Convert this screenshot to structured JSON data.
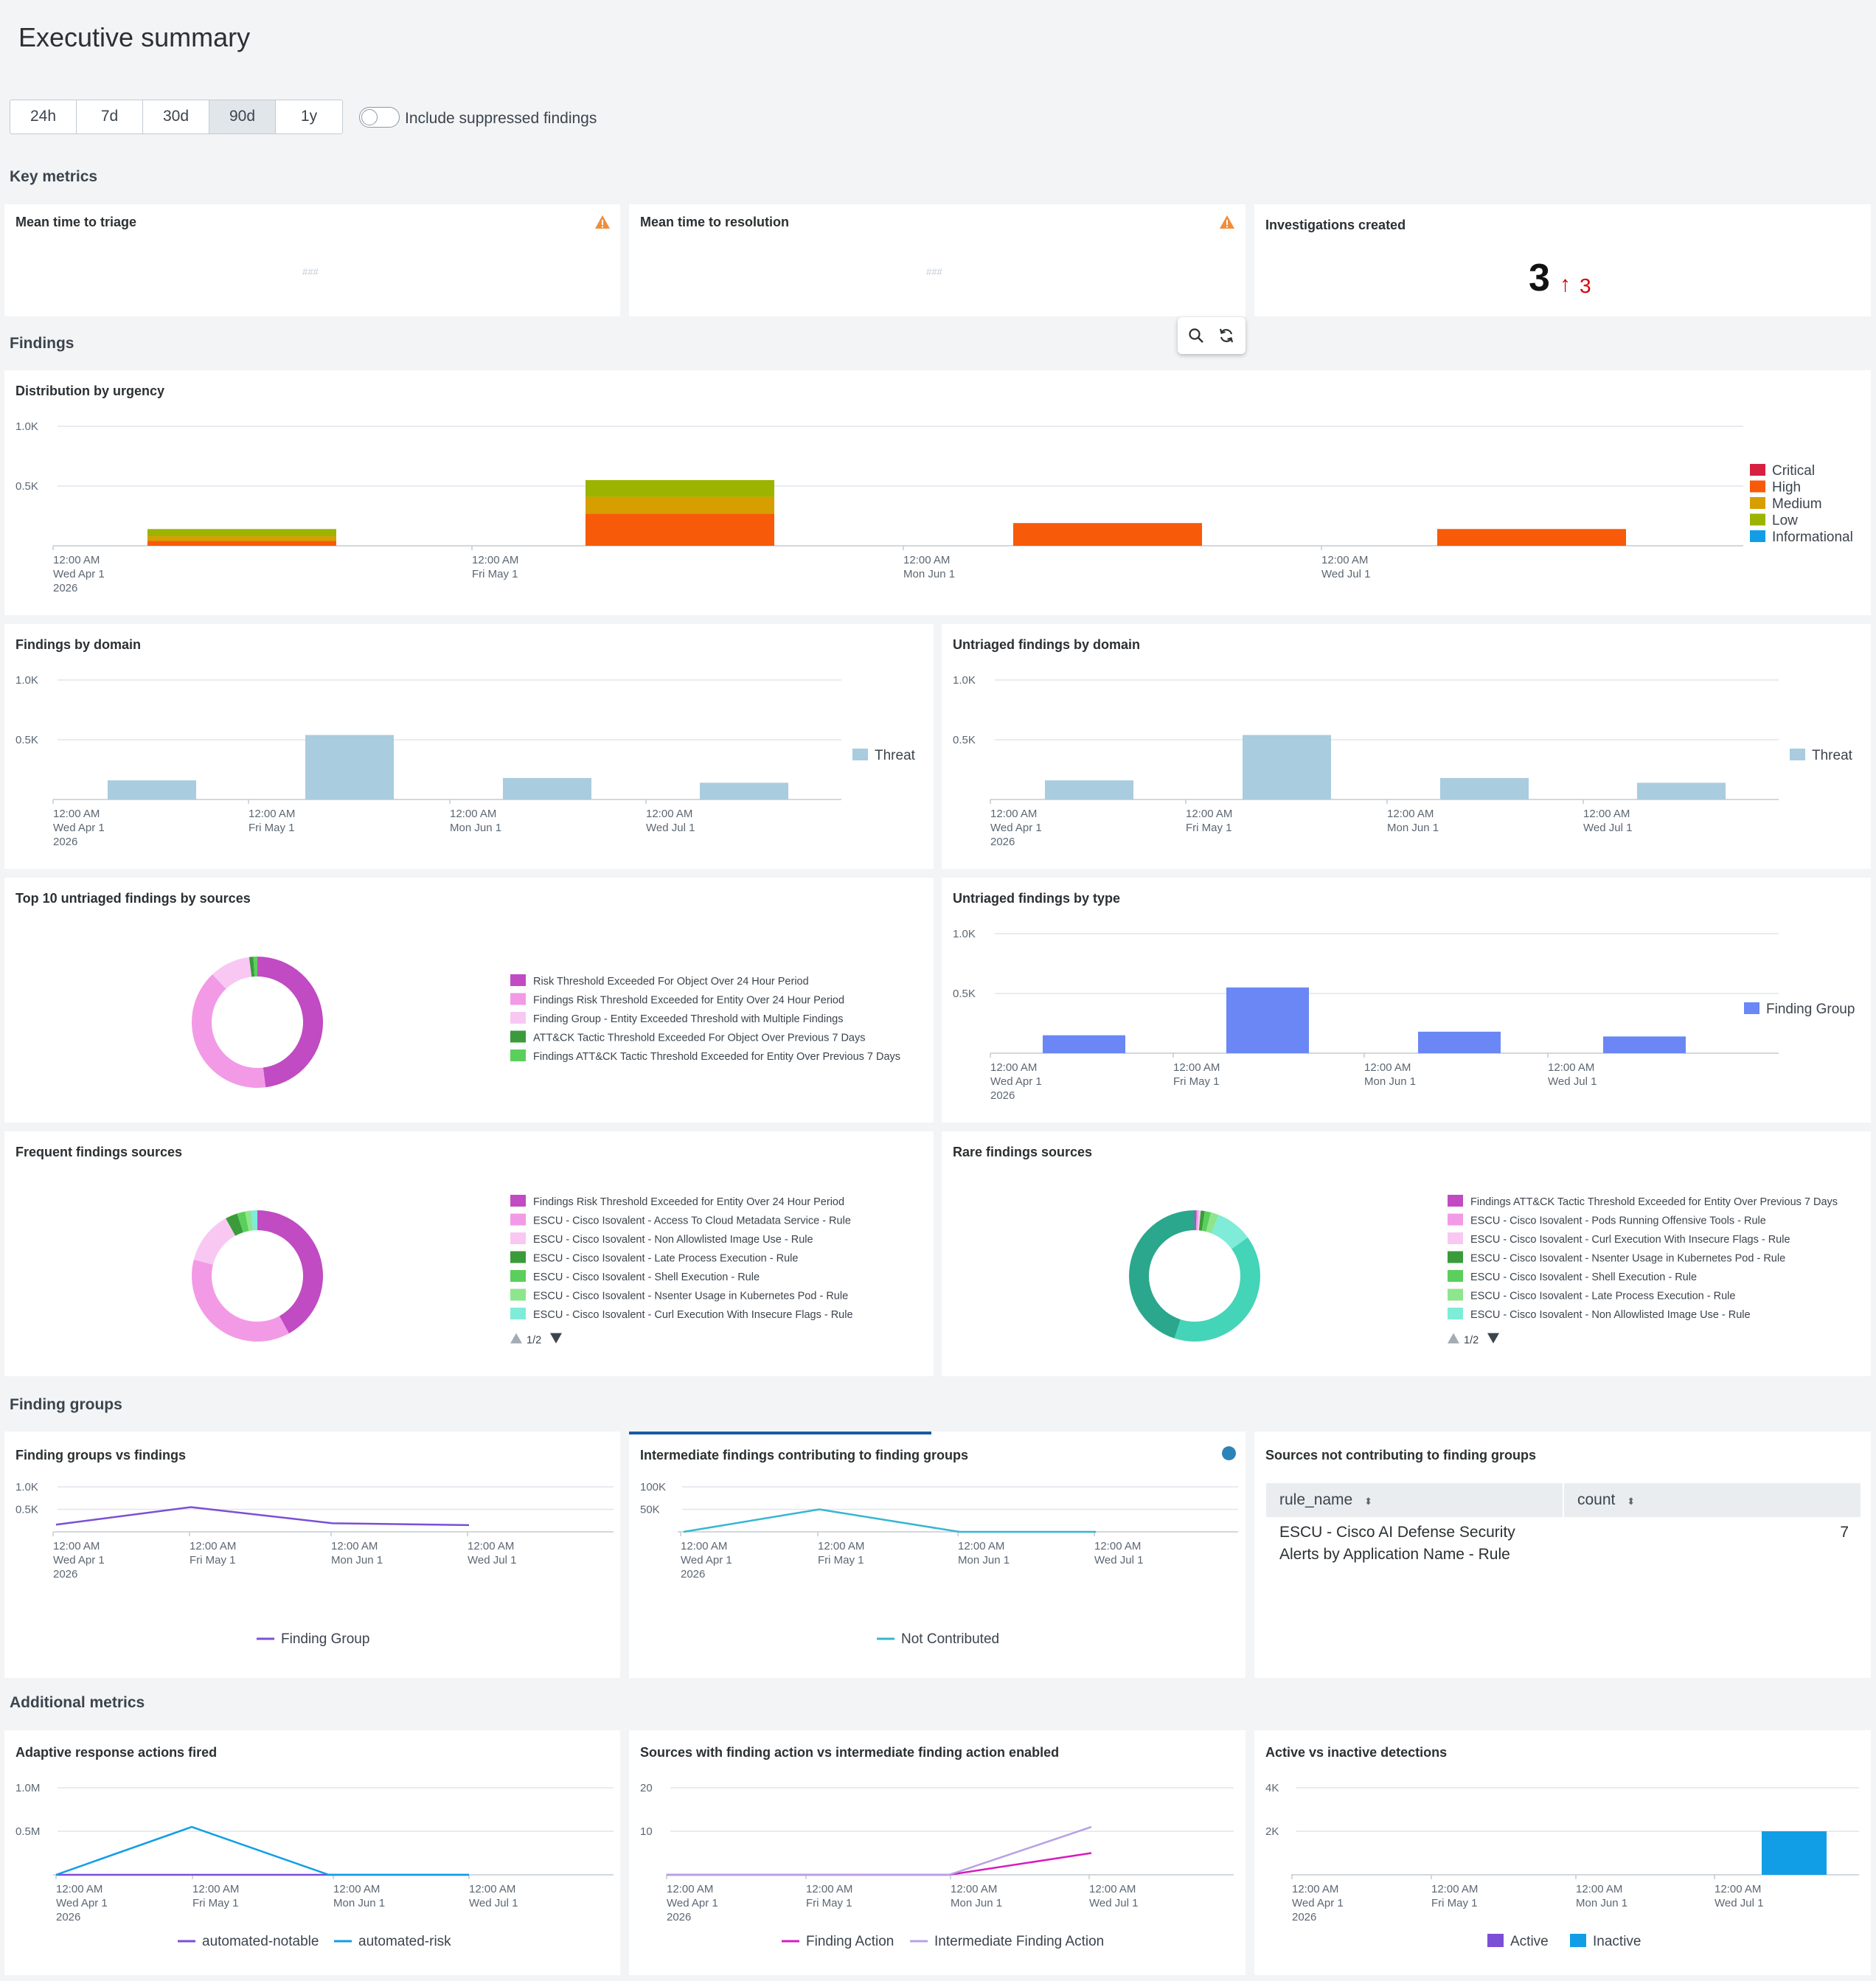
{
  "page": {
    "title": "Executive summary"
  },
  "time_ranges": [
    {
      "label": "24h",
      "selected": false
    },
    {
      "label": "7d",
      "selected": false
    },
    {
      "label": "30d",
      "selected": false
    },
    {
      "label": "90d",
      "selected": true
    },
    {
      "label": "1y",
      "selected": false
    }
  ],
  "suppressed_toggle": {
    "label": "Include suppressed findings",
    "on": false
  },
  "sections": {
    "key_metrics": "Key metrics",
    "findings": "Findings",
    "finding_groups": "Finding groups",
    "additional_metrics": "Additional metrics"
  },
  "key_metrics": {
    "triage": {
      "title": "Mean time to triage",
      "placeholder": "###"
    },
    "resolution": {
      "title": "Mean time to resolution",
      "placeholder": "###"
    },
    "investigations": {
      "title": "Investigations created",
      "value": "3",
      "delta": "3",
      "delta_arrow": "↑",
      "delta_color": "#d6000a"
    }
  },
  "icons": {
    "search": "search-icon",
    "refresh": "refresh-icon",
    "warning": "warning-icon",
    "sort": "sort-icon"
  },
  "colors": {
    "critical": "#d6203f",
    "high": "#f75a08",
    "medium": "#d79e00",
    "low": "#9cb400",
    "informational": "#119ee6",
    "threat": "#a9ccdf",
    "finding_group": "#6a87f5",
    "accent_blue": "#2b83b8"
  },
  "x_ticks": {
    "lines1": [
      "12:00 AM",
      "12:00 AM",
      "12:00 AM",
      "12:00 AM"
    ],
    "lines2": [
      "Wed Apr 1",
      "Fri May 1",
      "Mon Jun 1",
      "Wed Jul 1"
    ],
    "year": "2026"
  },
  "chart_data": [
    {
      "id": "distribution_by_urgency",
      "type": "bar",
      "stacked": true,
      "title": "Distribution by urgency",
      "y_ticks": [
        "1.0K",
        "0.5K"
      ],
      "ylim": [
        0,
        1000
      ],
      "categories": [
        "Wed Apr 1",
        "Fri May 1",
        "Mon Jun 1",
        "Wed Jul 1"
      ],
      "series": [
        {
          "name": "Critical",
          "color": "#d6203f",
          "values": [
            0,
            0,
            0,
            0
          ]
        },
        {
          "name": "High",
          "color": "#f75a08",
          "values": [
            40,
            270,
            190,
            140
          ]
        },
        {
          "name": "Medium",
          "color": "#d79e00",
          "values": [
            40,
            140,
            0,
            0
          ]
        },
        {
          "name": "Low",
          "color": "#9cb400",
          "values": [
            60,
            140,
            0,
            0
          ]
        },
        {
          "name": "Informational",
          "color": "#119ee6",
          "values": [
            0,
            0,
            0,
            0
          ]
        }
      ],
      "legend_position": "right"
    },
    {
      "id": "findings_by_domain",
      "type": "bar",
      "title": "Findings by domain",
      "y_ticks": [
        "1.0K",
        "0.5K"
      ],
      "ylim": [
        0,
        1000
      ],
      "categories": [
        "Wed Apr 1",
        "Fri May 1",
        "Mon Jun 1",
        "Wed Jul 1"
      ],
      "series": [
        {
          "name": "Threat",
          "color": "#a9ccdf",
          "values": [
            160,
            540,
            180,
            140
          ]
        }
      ],
      "legend_position": "right"
    },
    {
      "id": "untriaged_findings_by_domain",
      "type": "bar",
      "title": "Untriaged findings by domain",
      "y_ticks": [
        "1.0K",
        "0.5K"
      ],
      "ylim": [
        0,
        1000
      ],
      "categories": [
        "Wed Apr 1",
        "Fri May 1",
        "Mon Jun 1",
        "Wed Jul 1"
      ],
      "series": [
        {
          "name": "Threat",
          "color": "#a9ccdf",
          "values": [
            160,
            540,
            180,
            140
          ]
        }
      ],
      "legend_position": "right"
    },
    {
      "id": "top10_untriaged_by_sources",
      "type": "pie",
      "donut": true,
      "title": "Top 10 untriaged findings by sources",
      "slices": [
        {
          "name": "Risk Threshold Exceeded For Object Over 24 Hour Period",
          "value": 48,
          "color": "#c04bc3"
        },
        {
          "name": "Findings Risk Threshold Exceeded for Entity Over 24 Hour Period",
          "value": 40,
          "color": "#f39ae6"
        },
        {
          "name": "Finding Group - Entity Exceeded Threshold with Multiple Findings",
          "value": 10,
          "color": "#f8c8f3"
        },
        {
          "name": "ATT&CK Tactic Threshold Exceeded For Object Over Previous 7 Days",
          "value": 1,
          "color": "#3a9b3a"
        },
        {
          "name": "Findings ATT&CK Tactic Threshold Exceeded for Entity Over Previous 7 Days",
          "value": 1,
          "color": "#5bcf5b"
        }
      ]
    },
    {
      "id": "untriaged_findings_by_type",
      "type": "bar",
      "title": "Untriaged findings by type",
      "y_ticks": [
        "1.0K",
        "0.5K"
      ],
      "ylim": [
        0,
        1000
      ],
      "categories": [
        "Wed Apr 1",
        "Fri May 1",
        "Mon Jun 1",
        "Wed Jul 1"
      ],
      "series": [
        {
          "name": "Finding Group",
          "color": "#6a87f5",
          "values": [
            150,
            550,
            180,
            140
          ]
        }
      ],
      "legend_position": "right"
    },
    {
      "id": "frequent_findings_sources",
      "type": "pie",
      "donut": true,
      "title": "Frequent findings sources",
      "pagination": "1/2",
      "slices": [
        {
          "name": "Findings Risk Threshold Exceeded for Entity Over 24 Hour Period",
          "value": 42,
          "color": "#c04bc3"
        },
        {
          "name": "ESCU - Cisco Isovalent - Access To Cloud Metadata Service - Rule",
          "value": 37,
          "color": "#f39ae6"
        },
        {
          "name": "ESCU - Cisco Isovalent - Non Allowlisted Image Use - Rule",
          "value": 13,
          "color": "#f8c8f3"
        },
        {
          "name": "ESCU - Cisco Isovalent - Late Process Execution - Rule",
          "value": 3,
          "color": "#3a9b3a"
        },
        {
          "name": "ESCU - Cisco Isovalent - Shell Execution - Rule",
          "value": 2,
          "color": "#5bcf5b"
        },
        {
          "name": "ESCU - Cisco Isovalent - Nsenter Usage in Kubernetes Pod - Rule",
          "value": 1.5,
          "color": "#8de68d"
        },
        {
          "name": "ESCU - Cisco Isovalent - Curl Execution With Insecure Flags - Rule",
          "value": 1.5,
          "color": "#7eecd8"
        }
      ]
    },
    {
      "id": "rare_findings_sources",
      "type": "pie",
      "donut": true,
      "title": "Rare findings sources",
      "pagination": "1/2",
      "slices": [
        {
          "name": "Findings ATT&CK Tactic Threshold Exceeded for Entity Over Previous 7 Days",
          "value": 0.5,
          "color": "#c04bc3"
        },
        {
          "name": "ESCU - Cisco Isovalent - Pods Running Offensive Tools - Rule",
          "value": 0.5,
          "color": "#f39ae6"
        },
        {
          "name": "ESCU - Cisco Isovalent - Curl Execution With Insecure Flags - Rule",
          "value": 0.5,
          "color": "#f8c8f3"
        },
        {
          "name": "ESCU - Cisco Isovalent - Nsenter Usage in Kubernetes Pod - Rule",
          "value": 1,
          "color": "#3a9b3a"
        },
        {
          "name": "ESCU - Cisco Isovalent - Shell Execution - Rule",
          "value": 1.5,
          "color": "#5bcf5b"
        },
        {
          "name": "ESCU - Cisco Isovalent - Late Process Execution - Rule",
          "value": 2,
          "color": "#8de68d"
        },
        {
          "name": "ESCU - Cisco Isovalent - Non Allowlisted Image Use - Rule",
          "value": 9,
          "color": "#7eecd8"
        },
        {
          "name": "",
          "value": 40,
          "color": "#44d4b7"
        },
        {
          "name": "",
          "value": 45,
          "color": "#2aa78c"
        }
      ]
    },
    {
      "id": "finding_groups_vs_findings",
      "type": "line",
      "title": "Finding groups vs findings",
      "y_ticks": [
        "1.0K",
        "0.5K"
      ],
      "ylim": [
        0,
        1000
      ],
      "x": [
        "Wed Apr 1",
        "Fri May 1",
        "Mon Jun 1",
        "Wed Jul 1"
      ],
      "series": [
        {
          "name": "Finding Group",
          "color": "#7b4fd6",
          "values": [
            160,
            550,
            190,
            150
          ]
        }
      ],
      "legend_position": "bottom"
    },
    {
      "id": "intermediate_findings_contributing",
      "type": "line",
      "title": "Intermediate findings contributing to finding groups",
      "y_ticks": [
        "100K",
        "50K"
      ],
      "ylim": [
        0,
        100000
      ],
      "x": [
        "Wed Apr 1",
        "Fri May 1",
        "Mon Jun 1",
        "Wed Jul 1"
      ],
      "series": [
        {
          "name": "Not Contributed",
          "color": "#37b6d0",
          "values": [
            0,
            50000,
            0,
            0
          ]
        }
      ],
      "legend_position": "bottom"
    },
    {
      "id": "sources_not_contributing",
      "type": "table",
      "title": "Sources not contributing to finding groups",
      "columns": [
        "rule_name",
        "count"
      ],
      "rows": [
        {
          "rule_name_line1": "ESCU - Cisco AI Defense Security",
          "rule_name_line2": "Alerts by Application Name - Rule",
          "count": "7"
        }
      ]
    },
    {
      "id": "adaptive_response_actions",
      "type": "line",
      "title": "Adaptive response actions fired",
      "y_ticks": [
        "1.0M",
        "0.5M"
      ],
      "ylim": [
        0,
        1000000
      ],
      "x": [
        "Wed Apr 1",
        "Fri May 1",
        "Mon Jun 1",
        "Wed Jul 1"
      ],
      "series": [
        {
          "name": "automated-notable",
          "color": "#7b4fd6",
          "values": [
            0,
            0,
            0,
            0
          ]
        },
        {
          "name": "automated-risk",
          "color": "#119ee6",
          "values": [
            0,
            550000,
            0,
            0
          ]
        }
      ],
      "legend_position": "bottom"
    },
    {
      "id": "sources_finding_action",
      "type": "line",
      "title": "Sources with finding action vs intermediate finding action enabled",
      "y_ticks": [
        "20",
        "10"
      ],
      "ylim": [
        0,
        20
      ],
      "x": [
        "Wed Apr 1",
        "Fri May 1",
        "Mon Jun 1",
        "Wed Jul 1"
      ],
      "series": [
        {
          "name": "Finding Action",
          "color": "#d61dbe",
          "values": [
            0,
            0,
            0,
            5
          ]
        },
        {
          "name": "Intermediate Finding Action",
          "color": "#b7a0e6",
          "values": [
            0,
            0,
            0,
            11
          ]
        }
      ],
      "legend_position": "bottom"
    },
    {
      "id": "active_vs_inactive",
      "type": "bar",
      "title": "Active vs inactive detections",
      "y_ticks": [
        "4K",
        "2K"
      ],
      "ylim": [
        0,
        4000
      ],
      "categories": [
        "Wed Apr 1",
        "Fri May 1",
        "Mon Jun 1",
        "Wed Jul 1"
      ],
      "series": [
        {
          "name": "Active",
          "color": "#7b4fd6",
          "values": [
            0,
            0,
            0,
            0
          ]
        },
        {
          "name": "Inactive",
          "color": "#119ee6",
          "values": [
            0,
            0,
            0,
            2000
          ]
        }
      ],
      "legend_position": "bottom"
    }
  ]
}
